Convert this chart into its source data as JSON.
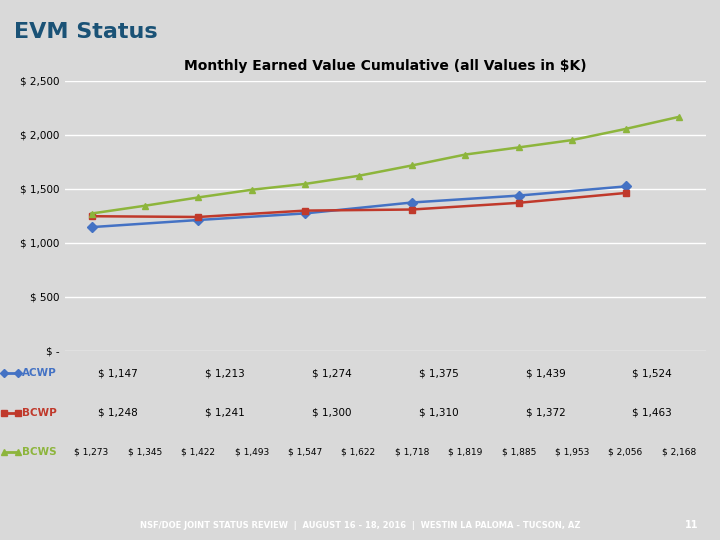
{
  "title": "Monthly Earned Value Cumulative (all Values in $K)",
  "slide_title": "EVM Status",
  "background_color": "#d9d9d9",
  "plot_bg_color": "#d9d9d9",
  "series": [
    {
      "name": "ACWP",
      "color": "#4472c4",
      "marker": "D",
      "values": [
        1147,
        1213,
        1274,
        1375,
        1439,
        1524
      ]
    },
    {
      "name": "BCWP",
      "color": "#c0392b",
      "marker": "s",
      "values": [
        1248,
        1241,
        1300,
        1310,
        1372,
        1463
      ]
    },
    {
      "name": "BCWS",
      "color": "#8db53c",
      "marker": "^",
      "values": [
        1273,
        1345,
        1422,
        1493,
        1547,
        1622,
        1718,
        1819,
        1885,
        1953,
        2056,
        2168
      ]
    }
  ],
  "x_positions_acwp": [
    0,
    2,
    4,
    6,
    8,
    10
  ],
  "x_positions_bcwp": [
    0,
    2,
    4,
    6,
    8,
    10
  ],
  "x_positions_bcws": [
    0,
    1,
    2,
    3,
    4,
    5,
    6,
    7,
    8,
    9,
    10,
    11
  ],
  "xlim": [
    -0.5,
    11.5
  ],
  "ylim": [
    0,
    2500
  ],
  "yticks": [
    0,
    500,
    1000,
    1500,
    2000,
    2500
  ],
  "ytick_labels": [
    "$ -",
    "$ 500",
    "$ 1,000",
    "$ 1,500",
    "$ 2,000",
    "$ 2,500"
  ],
  "table_data": {
    "ACWP": [
      "$ 1,147",
      "$ 1,213",
      "$ 1,274",
      "$ 1,375",
      "$ 1,439",
      "$ 1,524"
    ],
    "BCWP": [
      "$ 1,248",
      "$ 1,241",
      "$ 1,300",
      "$ 1,310",
      "$ 1,372",
      "$ 1,463"
    ],
    "BCWS_row1": [
      "$ 1,273",
      "$ 1,345",
      "$ 1,422",
      "$ 1,493",
      "$ 1,547",
      "$ 1,622",
      "$ 1,718",
      "$ 1,819",
      "$ 1,885",
      "$ 1,953",
      "$ 2,056",
      "$ 2,168"
    ]
  },
  "footer_text": "NSF/DOE JOINT STATUS REVIEW  |  AUGUST 16 - 18, 2016  |  WESTIN LA PALOMA - TUCSON, AZ",
  "footer_number": "11",
  "footer_bg": "#70c4d4",
  "header_bg": "#f0f0f0",
  "title_color": "#000000",
  "grid_color": "#ffffff",
  "table_header_bg": "#d9d9d9",
  "table_row_bg": [
    "#e8e8e8",
    "#d0d0d0",
    "#c8c8c8"
  ]
}
